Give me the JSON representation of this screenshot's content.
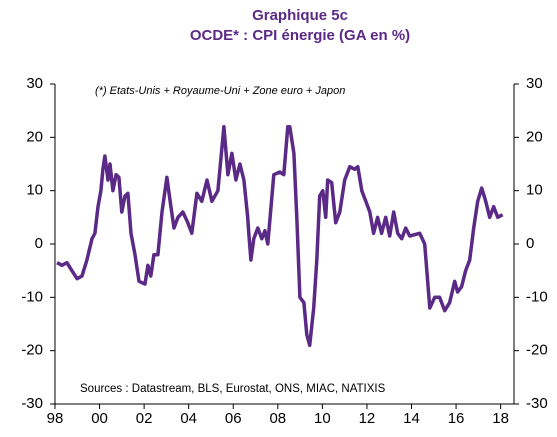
{
  "chart_data": {
    "type": "line",
    "title": "Graphique 5c",
    "subtitle": "OCDE* : CPI énergie (GA en %)",
    "annotations": [
      "(*) Etats-Unis + Royaume-Uni  + Zone euro + Japon",
      "Sources : Datastream,  BLS, Eurostat,  ONS, MIAC, NATIXIS"
    ],
    "x": [
      1998.09,
      1998.31,
      1998.54,
      1998.76,
      1998.99,
      1999.21,
      1999.43,
      1999.66,
      1999.79,
      1999.93,
      2000.06,
      2000.15,
      2000.24,
      2000.38,
      2000.47,
      2000.6,
      2000.74,
      2000.87,
      2001.0,
      2001.14,
      2001.27,
      2001.41,
      2001.59,
      2001.77,
      2002.04,
      2002.17,
      2002.3,
      2002.44,
      2002.62,
      2002.8,
      2003.02,
      2003.2,
      2003.34,
      2003.52,
      2003.74,
      2003.96,
      2004.14,
      2004.37,
      2004.59,
      2004.82,
      2005.04,
      2005.31,
      2005.58,
      2005.76,
      2005.94,
      2006.12,
      2006.3,
      2006.48,
      2006.65,
      2006.7,
      2006.79,
      2006.92,
      2007.1,
      2007.28,
      2007.42,
      2007.55,
      2007.82,
      2008.09,
      2008.27,
      2008.45,
      2008.54,
      2008.72,
      2008.85,
      2008.99,
      2009.17,
      2009.3,
      2009.43,
      2009.61,
      2009.75,
      2009.88,
      2010.02,
      2010.15,
      2010.24,
      2010.42,
      2010.6,
      2010.78,
      2011.0,
      2011.23,
      2011.45,
      2011.59,
      2011.77,
      2011.95,
      2012.13,
      2012.3,
      2012.48,
      2012.66,
      2012.84,
      2013.02,
      2013.2,
      2013.38,
      2013.56,
      2013.74,
      2013.92,
      2014.37,
      2014.59,
      2014.82,
      2015.04,
      2015.26,
      2015.49,
      2015.71,
      2015.94,
      2016.07,
      2016.25,
      2016.43,
      2016.61,
      2016.79,
      2016.97,
      2017.15,
      2017.33,
      2017.51,
      2017.69,
      2017.87,
      2018.09
    ],
    "series": [
      {
        "name": "CPI énergie",
        "color": "#5b2a86",
        "values": [
          -3.5,
          -4,
          -3.5,
          -5,
          -6.5,
          -6,
          -3,
          1,
          2,
          7,
          10,
          14,
          16.5,
          12,
          15,
          10,
          13,
          12.5,
          6,
          9,
          9.5,
          2,
          -2,
          -7,
          -7.5,
          -4,
          -6,
          -2,
          -2,
          6,
          12.5,
          7,
          3,
          5,
          6,
          4,
          2,
          9.5,
          8,
          12,
          8,
          10,
          22,
          13,
          17,
          12,
          15,
          12,
          5,
          2,
          -3,
          1,
          3,
          1,
          2.5,
          0,
          13,
          13.5,
          13,
          22,
          22,
          17,
          5,
          -10,
          -11,
          -17,
          -19,
          -12,
          -3,
          9,
          10,
          5,
          12,
          11.5,
          4,
          6,
          12,
          14.5,
          14,
          14.5,
          10,
          8,
          6,
          2,
          5,
          2,
          5,
          1.5,
          6,
          2,
          1,
          3,
          1.5,
          2,
          0,
          -12,
          -10,
          -10,
          -12.5,
          -11,
          -7,
          -9,
          -8,
          -5,
          -3,
          3,
          8,
          10.5,
          8,
          5,
          7,
          5,
          5.5
        ]
      }
    ],
    "xlim": [
      1998,
      2018.6
    ],
    "xticks": [
      {
        "value": 1998,
        "label": "98"
      },
      {
        "value": 2000,
        "label": "00"
      },
      {
        "value": 2002,
        "label": "02"
      },
      {
        "value": 2004,
        "label": "04"
      },
      {
        "value": 2006,
        "label": "06"
      },
      {
        "value": 2008,
        "label": "08"
      },
      {
        "value": 2010,
        "label": "10"
      },
      {
        "value": 2012,
        "label": "12"
      },
      {
        "value": 2014,
        "label": "14"
      },
      {
        "value": 2016,
        "label": "16"
      },
      {
        "value": 2018,
        "label": "18"
      }
    ],
    "ylim": [
      -30,
      30
    ],
    "yticks": [
      -30,
      -20,
      -10,
      0,
      10,
      20,
      30
    ],
    "grid": false
  }
}
